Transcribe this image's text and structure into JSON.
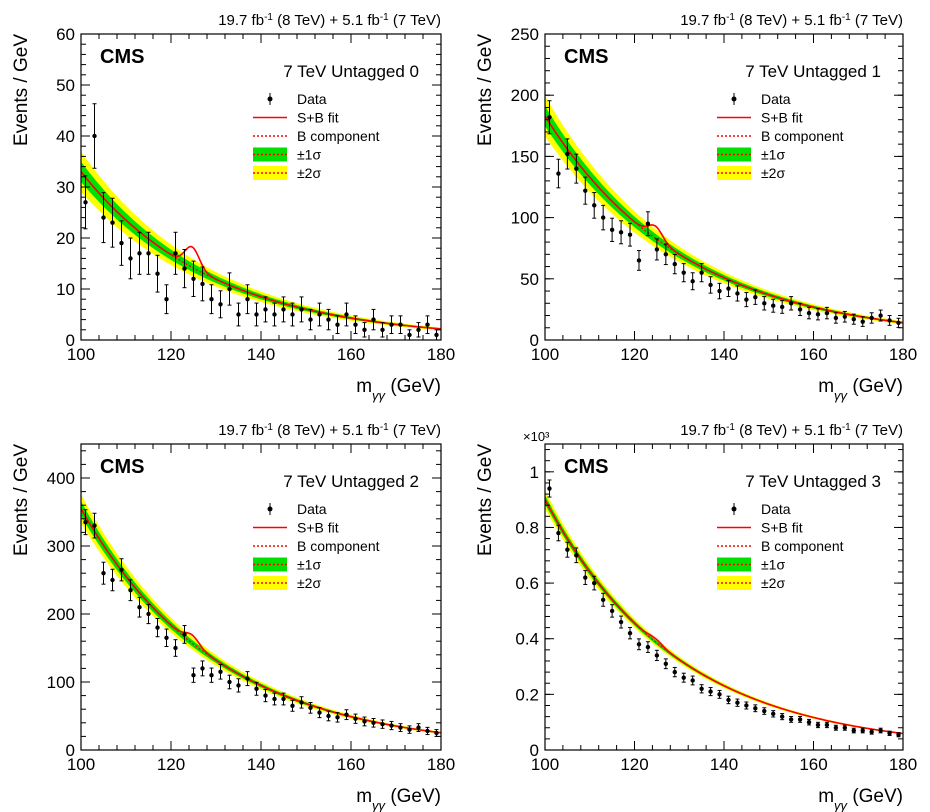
{
  "lumi_parts": {
    "a": "19.7 fb",
    "a_sup": "-1",
    "b": " (8 TeV) + 5.1 fb",
    "b_sup": "-1",
    "c": " (7 TeV)"
  },
  "experiment": "CMS",
  "ylabel": "Events / GeV",
  "xlabel": {
    "base": "m",
    "sub": "γγ",
    "unit": " (GeV)"
  },
  "legend": [
    "Data",
    "S+B fit",
    "B component",
    "±1σ",
    "±2σ"
  ],
  "colors": {
    "data": "#000000",
    "sb_fit": "#ff0000",
    "b_component": "#ff0000",
    "band_1sigma": "#00e000",
    "band_2sigma": "#ffff00"
  },
  "chart_data": [
    {
      "type": "scatter",
      "title": "7 TeV Untagged 0",
      "xlim": [
        100,
        180
      ],
      "ylim": [
        0,
        60
      ],
      "xticks": [
        "100",
        "120",
        "140",
        "160",
        "180"
      ],
      "yticks": [
        "0",
        "10",
        "20",
        "30",
        "40",
        "50",
        "60"
      ],
      "y_multiplier": "",
      "signal_mass": 124.7,
      "fit": {
        "A": 33,
        "k": 0.034,
        "signal_amp": 4,
        "signal_sigma": 1.6,
        "band1": 0.06,
        "band2": 0.12
      },
      "series": [
        {
          "name": "Data",
          "x": [
            101,
            103,
            105,
            107,
            109,
            111,
            113,
            115,
            117,
            119,
            121,
            123,
            125,
            127,
            129,
            131,
            133,
            135,
            137,
            139,
            141,
            143,
            145,
            147,
            149,
            151,
            153,
            155,
            157,
            159,
            161,
            163,
            165,
            167,
            169,
            171,
            173,
            175,
            177,
            179
          ],
          "y": [
            27,
            40,
            24,
            23,
            19,
            16,
            17,
            17,
            13,
            8,
            17,
            14,
            12,
            11,
            8,
            7,
            10,
            5,
            8,
            5,
            6,
            5,
            6,
            5,
            6,
            4,
            5,
            4,
            3,
            5,
            3,
            2,
            4,
            2,
            3,
            3,
            1,
            2,
            3,
            1
          ]
        }
      ]
    },
    {
      "type": "scatter",
      "title": "7 TeV Untagged 1",
      "xlim": [
        100,
        180
      ],
      "ylim": [
        0,
        250
      ],
      "xticks": [
        "100",
        "120",
        "140",
        "160",
        "180"
      ],
      "yticks": [
        "0",
        "50",
        "100",
        "150",
        "200",
        "250"
      ],
      "y_multiplier": "",
      "signal_mass": 124.7,
      "fit": {
        "A": 183,
        "k": 0.032,
        "signal_amp": 10,
        "signal_sigma": 1.6,
        "band1": 0.045,
        "band2": 0.09
      },
      "series": [
        {
          "name": "Data",
          "x": [
            101,
            103,
            105,
            107,
            109,
            111,
            113,
            115,
            117,
            119,
            121,
            123,
            125,
            127,
            129,
            131,
            133,
            135,
            137,
            139,
            141,
            143,
            145,
            147,
            149,
            151,
            153,
            155,
            157,
            159,
            161,
            163,
            165,
            167,
            169,
            171,
            173,
            175,
            177,
            179
          ],
          "y": [
            182,
            136,
            152,
            140,
            122,
            110,
            100,
            90,
            88,
            86,
            65,
            95,
            74,
            70,
            62,
            55,
            48,
            55,
            45,
            40,
            42,
            38,
            33,
            35,
            30,
            28,
            27,
            30,
            25,
            22,
            21,
            22,
            18,
            19,
            17,
            15,
            18,
            20,
            16,
            14
          ]
        }
      ]
    },
    {
      "type": "scatter",
      "title": "7 TeV Untagged 2",
      "xlim": [
        100,
        180
      ],
      "ylim": [
        0,
        450
      ],
      "xticks": [
        "100",
        "120",
        "140",
        "160",
        "180"
      ],
      "yticks": [
        "0",
        "100",
        "200",
        "300",
        "400"
      ],
      "y_multiplier": "",
      "signal_mass": 124.7,
      "fit": {
        "A": 355,
        "k": 0.033,
        "signal_amp": 12,
        "signal_sigma": 1.6,
        "band1": 0.03,
        "band2": 0.06
      },
      "series": [
        {
          "name": "Data",
          "x": [
            101,
            103,
            105,
            107,
            109,
            111,
            113,
            115,
            117,
            119,
            121,
            123,
            125,
            127,
            129,
            131,
            133,
            135,
            137,
            139,
            141,
            143,
            145,
            147,
            149,
            151,
            153,
            155,
            157,
            159,
            161,
            163,
            165,
            167,
            169,
            171,
            173,
            175,
            177,
            179
          ],
          "y": [
            335,
            330,
            260,
            250,
            265,
            235,
            210,
            200,
            180,
            165,
            150,
            170,
            110,
            120,
            110,
            115,
            100,
            95,
            105,
            90,
            80,
            75,
            75,
            65,
            70,
            62,
            55,
            50,
            48,
            52,
            46,
            42,
            40,
            38,
            36,
            33,
            30,
            33,
            28,
            25
          ]
        }
      ]
    },
    {
      "type": "scatter",
      "title": "7 TeV Untagged 3",
      "xlim": [
        100,
        180
      ],
      "ylim": [
        0,
        1.1
      ],
      "xticks": [
        "100",
        "120",
        "140",
        "160",
        "180"
      ],
      "yticks": [
        "0",
        "0.2",
        "0.4",
        "0.6",
        "0.8",
        "1"
      ],
      "y_multiplier": "×10³",
      "signal_mass": 124.7,
      "fit": {
        "A": 0.9,
        "k": 0.034,
        "signal_amp": 0.012,
        "signal_sigma": 1.6,
        "band1": 0.018,
        "band2": 0.036
      },
      "series": [
        {
          "name": "Data",
          "x": [
            101,
            103,
            105,
            107,
            109,
            111,
            113,
            115,
            117,
            119,
            121,
            123,
            125,
            127,
            129,
            131,
            133,
            135,
            137,
            139,
            141,
            143,
            145,
            147,
            149,
            151,
            153,
            155,
            157,
            159,
            161,
            163,
            165,
            167,
            169,
            171,
            173,
            175,
            177,
            179
          ],
          "y": [
            0.94,
            0.78,
            0.72,
            0.7,
            0.62,
            0.6,
            0.54,
            0.5,
            0.46,
            0.42,
            0.38,
            0.37,
            0.34,
            0.31,
            0.28,
            0.26,
            0.25,
            0.22,
            0.21,
            0.2,
            0.18,
            0.17,
            0.16,
            0.15,
            0.14,
            0.13,
            0.12,
            0.11,
            0.11,
            0.1,
            0.09,
            0.09,
            0.08,
            0.08,
            0.07,
            0.07,
            0.065,
            0.07,
            0.06,
            0.055
          ]
        }
      ]
    }
  ]
}
